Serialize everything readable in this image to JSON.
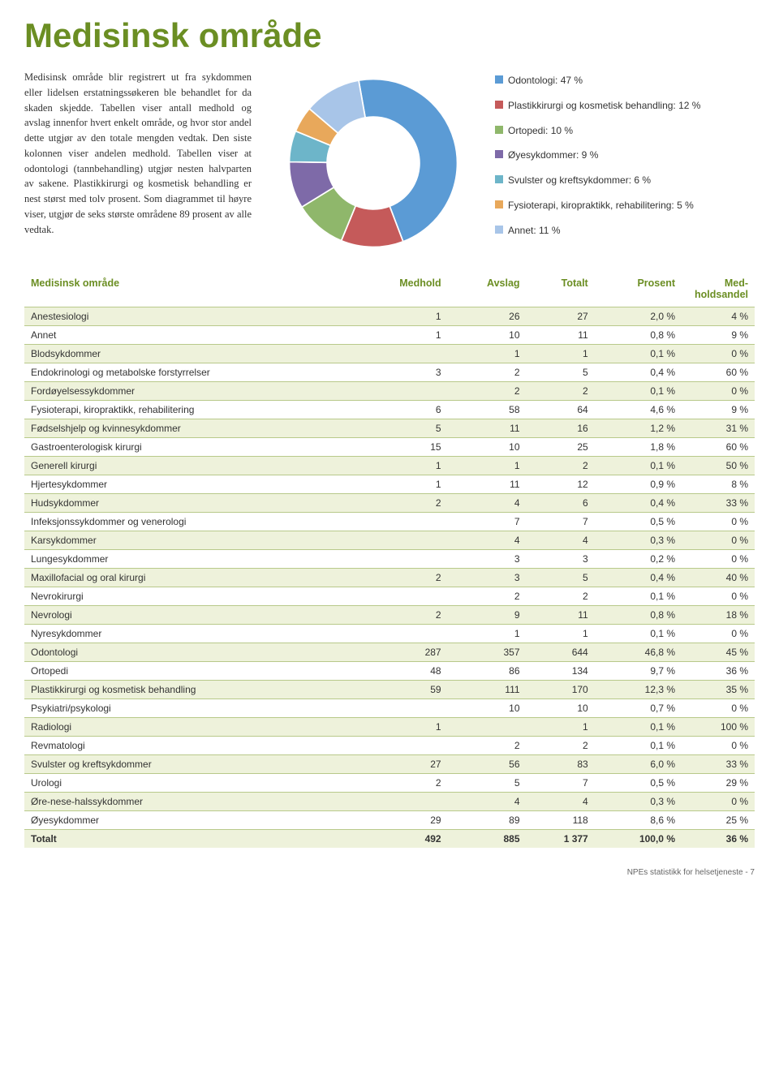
{
  "title": "Medisinsk område",
  "intro": "Medisinsk område blir registrert ut fra sykdommen eller lidelsen erstatnings­søkeren ble behandlet for da skaden skjedde. Tabellen viser antall medhold og avslag innenfor hvert enkelt område, og hvor stor andel dette utgjør av den totale mengden vedtak. Den siste kolonnen viser andelen medhold. Tabellen viser at odontologi (tannbehandling) utgjør nesten halvparten av sakene. Plastikkirurgi og kosmetisk behandling er nest størst med tolv prosent. Som diagrammet til høyre viser, utgjør de seks største områdene 89 prosent av alle vedtak.",
  "chart": {
    "type": "donut",
    "inner_radius": 0.55,
    "slices": [
      {
        "label": "Odontologi: 47 %",
        "value": 47,
        "color": "#5b9bd5"
      },
      {
        "label": "Plastikkirurgi og kosmetisk behandling: 12 %",
        "value": 12,
        "color": "#c55a5a"
      },
      {
        "label": "Ortopedi: 10 %",
        "value": 10,
        "color": "#8fb76b"
      },
      {
        "label": "Øyesykdommer: 9 %",
        "value": 9,
        "color": "#7e6aa8"
      },
      {
        "label": "Svulster og kreftsykdommer: 6 %",
        "value": 6,
        "color": "#6db5c9"
      },
      {
        "label": "Fysioterapi, kiropraktikk, rehabilitering: 5 %",
        "value": 5,
        "color": "#e8a85b"
      },
      {
        "label": "Annet: 11 %",
        "value": 11,
        "color": "#a8c5e8"
      }
    ]
  },
  "table": {
    "columns": [
      "Medisinsk område",
      "Medhold",
      "Avslag",
      "Totalt",
      "Prosent",
      "Med­holdsandel"
    ],
    "rows": [
      [
        "Anestesiologi",
        "1",
        "26",
        "27",
        "2,0 %",
        "4 %"
      ],
      [
        "Annet",
        "1",
        "10",
        "11",
        "0,8 %",
        "9 %"
      ],
      [
        "Blodsykdommer",
        "",
        "1",
        "1",
        "0,1 %",
        "0 %"
      ],
      [
        "Endokrinologi og metabolske forstyrrelser",
        "3",
        "2",
        "5",
        "0,4 %",
        "60 %"
      ],
      [
        "Fordøyelsessykdommer",
        "",
        "2",
        "2",
        "0,1 %",
        "0 %"
      ],
      [
        "Fysioterapi, kiropraktikk, rehabilitering",
        "6",
        "58",
        "64",
        "4,6 %",
        "9 %"
      ],
      [
        "Fødselshjelp og kvinnesykdommer",
        "5",
        "11",
        "16",
        "1,2 %",
        "31 %"
      ],
      [
        "Gastroenterologisk kirurgi",
        "15",
        "10",
        "25",
        "1,8 %",
        "60 %"
      ],
      [
        "Generell kirurgi",
        "1",
        "1",
        "2",
        "0,1 %",
        "50 %"
      ],
      [
        "Hjertesykdommer",
        "1",
        "11",
        "12",
        "0,9 %",
        "8 %"
      ],
      [
        "Hudsykdommer",
        "2",
        "4",
        "6",
        "0,4 %",
        "33 %"
      ],
      [
        "Infeksjonssykdommer og venerologi",
        "",
        "7",
        "7",
        "0,5 %",
        "0 %"
      ],
      [
        "Karsykdommer",
        "",
        "4",
        "4",
        "0,3 %",
        "0 %"
      ],
      [
        "Lungesykdommer",
        "",
        "3",
        "3",
        "0,2 %",
        "0 %"
      ],
      [
        "Maxillofacial og oral kirurgi",
        "2",
        "3",
        "5",
        "0,4 %",
        "40 %"
      ],
      [
        "Nevrokirurgi",
        "",
        "2",
        "2",
        "0,1 %",
        "0 %"
      ],
      [
        "Nevrologi",
        "2",
        "9",
        "11",
        "0,8 %",
        "18 %"
      ],
      [
        "Nyresykdommer",
        "",
        "1",
        "1",
        "0,1 %",
        "0 %"
      ],
      [
        "Odontologi",
        "287",
        "357",
        "644",
        "46,8 %",
        "45 %"
      ],
      [
        "Ortopedi",
        "48",
        "86",
        "134",
        "9,7 %",
        "36 %"
      ],
      [
        "Plastikkirurgi og kosmetisk behandling",
        "59",
        "111",
        "170",
        "12,3 %",
        "35 %"
      ],
      [
        "Psykiatri/psykologi",
        "",
        "10",
        "10",
        "0,7 %",
        "0 %"
      ],
      [
        "Radiologi",
        "1",
        "",
        "1",
        "0,1 %",
        "100 %"
      ],
      [
        "Revmatologi",
        "",
        "2",
        "2",
        "0,1 %",
        "0 %"
      ],
      [
        "Svulster og kreftsykdommer",
        "27",
        "56",
        "83",
        "6,0 %",
        "33 %"
      ],
      [
        "Urologi",
        "2",
        "5",
        "7",
        "0,5 %",
        "29 %"
      ],
      [
        "Øre-nese-halssykdommer",
        "",
        "4",
        "4",
        "0,3 %",
        "0 %"
      ],
      [
        "Øyesykdommer",
        "29",
        "89",
        "118",
        "8,6 %",
        "25 %"
      ]
    ],
    "total": [
      "Totalt",
      "492",
      "885",
      "1 377",
      "100,0 %",
      "36 %"
    ]
  },
  "footer": "NPEs statistikk for helsetjeneste - 7"
}
